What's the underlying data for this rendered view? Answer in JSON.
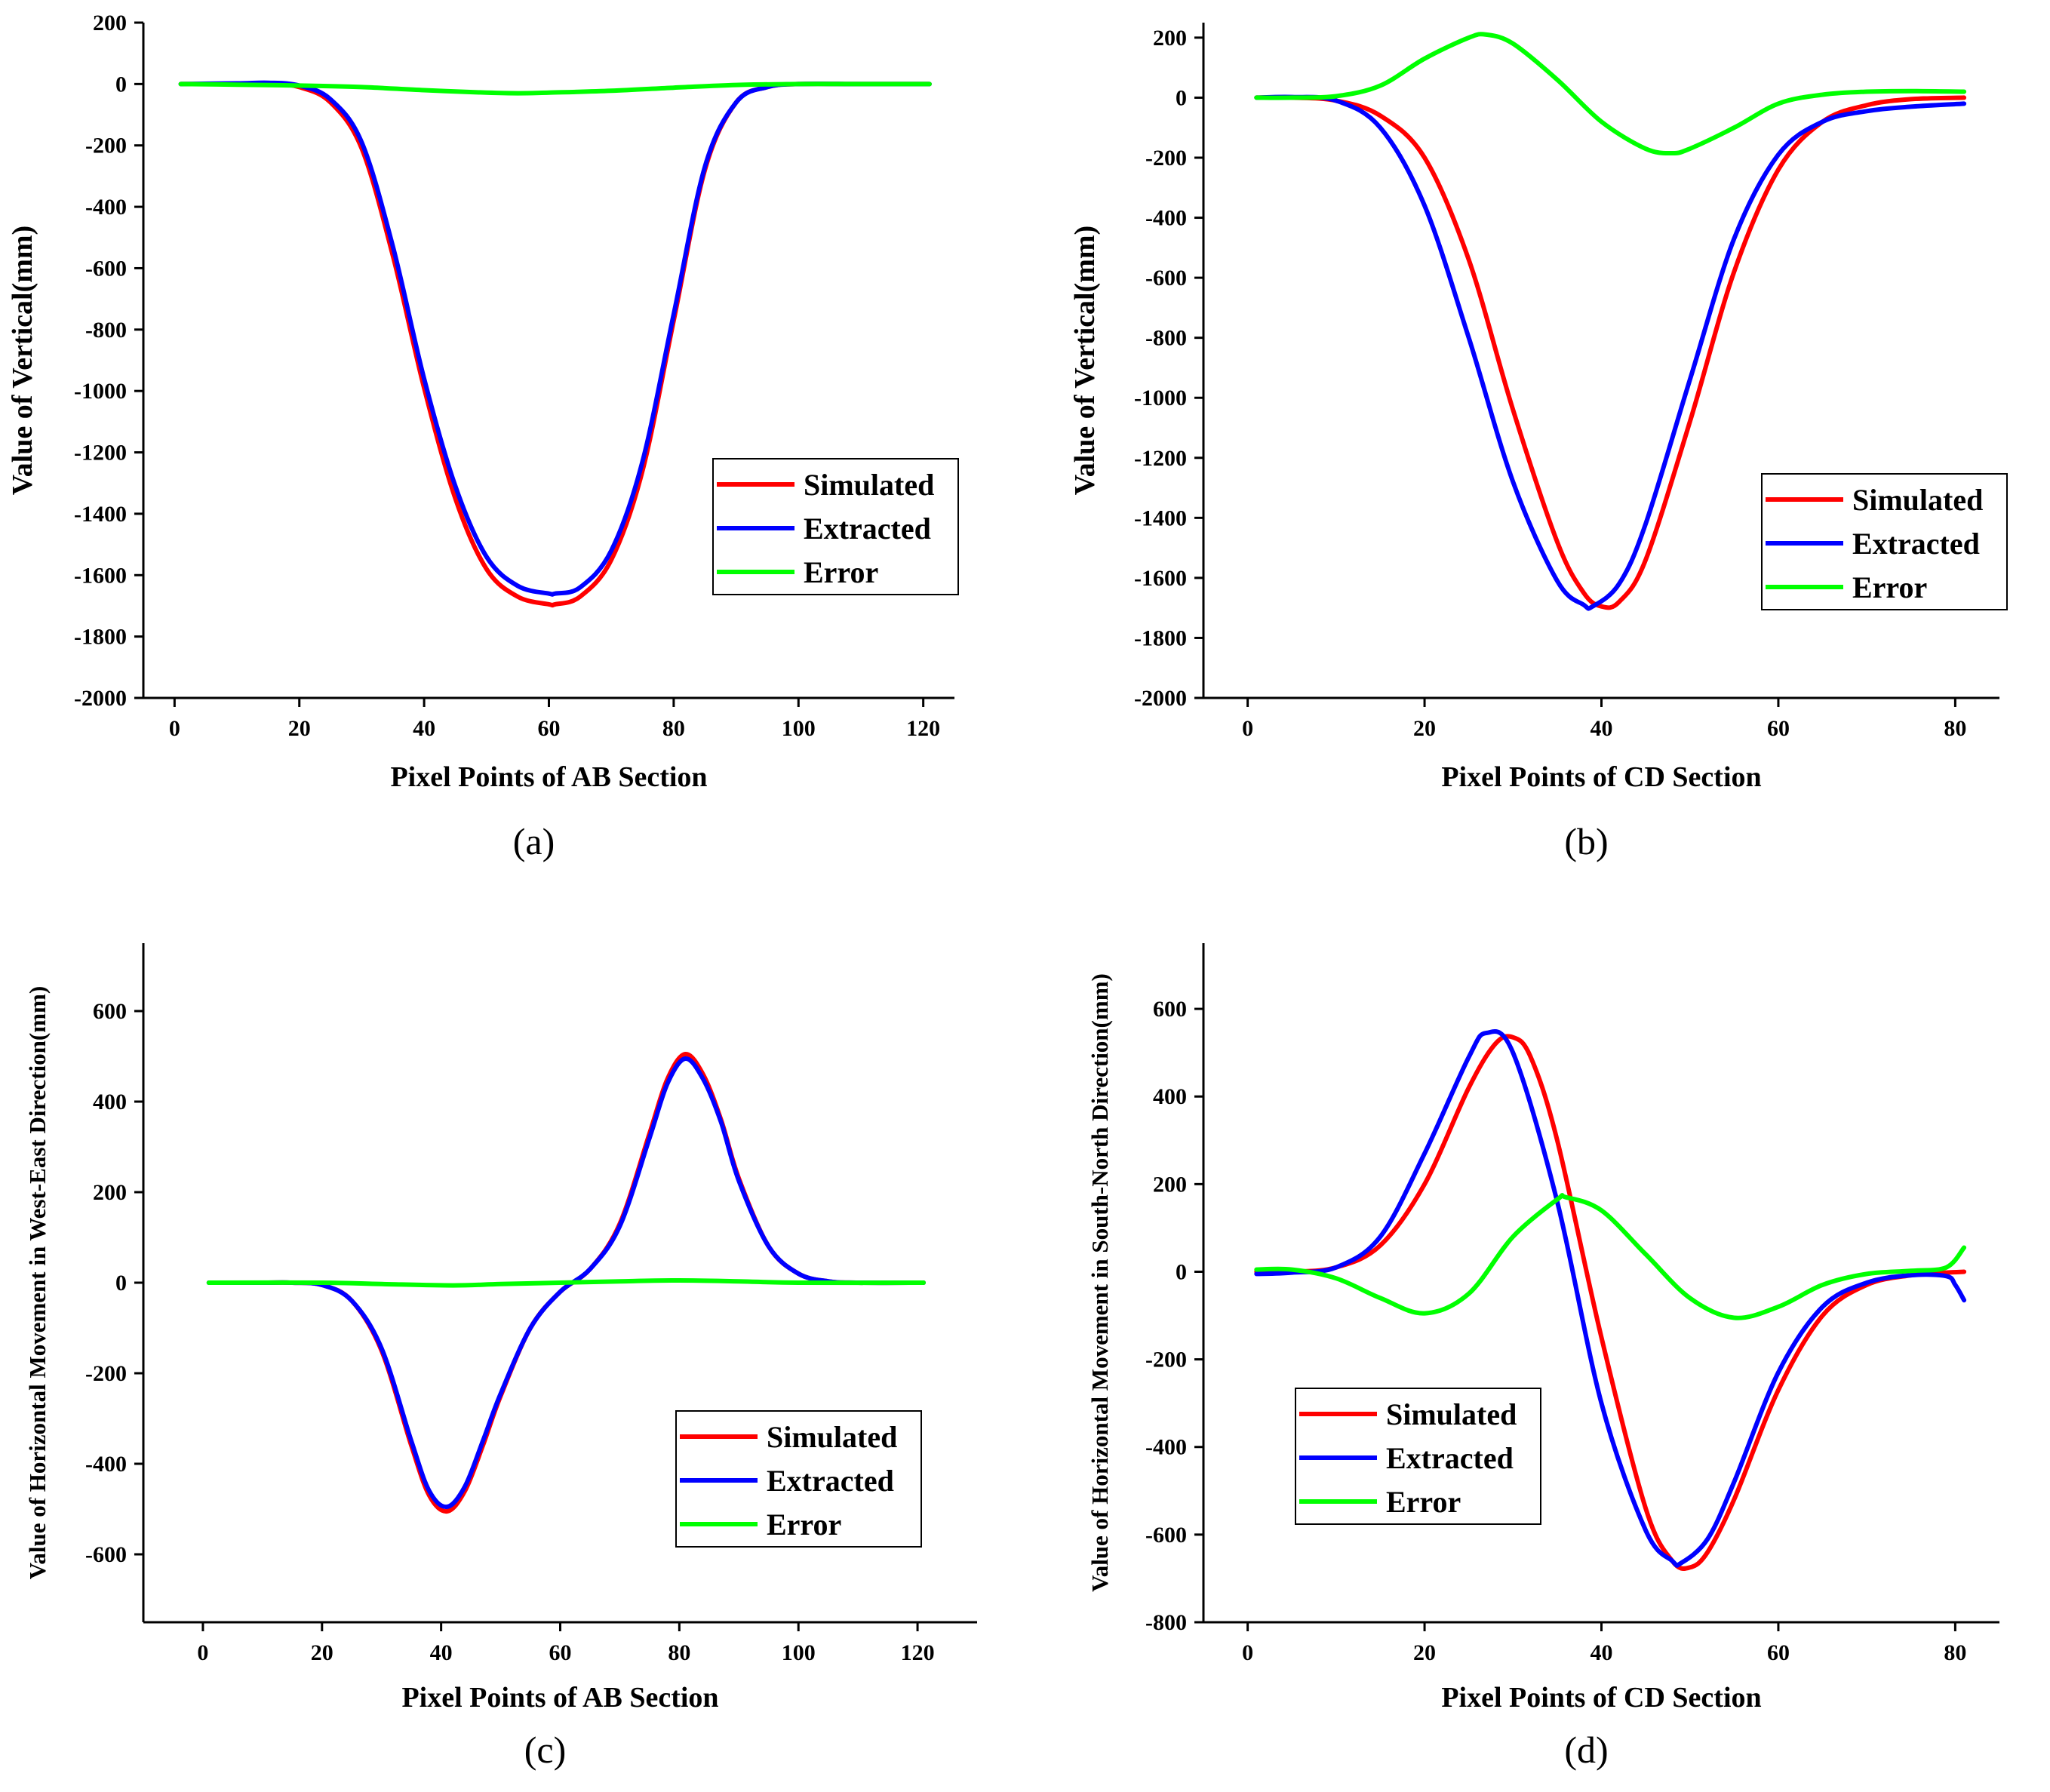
{
  "series_colors": {
    "Simulated": "#ff0000",
    "Extracted": "#0000ff",
    "Error": "#00ff00"
  },
  "chart_data": [
    {
      "panel": "(a)",
      "type": "line",
      "xlabel": "Pixel Points of AB Section",
      "ylabel": "Value of Vertical(mm)",
      "xlim": [
        -5,
        125
      ],
      "ylim": [
        -2000,
        200
      ],
      "xticks": [
        0,
        20,
        40,
        60,
        80,
        100,
        120
      ],
      "yticks": [
        -2000,
        -1800,
        -1600,
        -1400,
        -1200,
        -1000,
        -800,
        -600,
        -400,
        -200,
        0,
        200
      ],
      "legend": [
        "Simulated",
        "Extracted",
        "Error"
      ],
      "legend_position": "right",
      "series": [
        {
          "name": "Simulated",
          "x": [
            1,
            10,
            15,
            20,
            25,
            30,
            35,
            40,
            45,
            50,
            55,
            60,
            61,
            65,
            70,
            75,
            80,
            85,
            90,
            95,
            100,
            110,
            121
          ],
          "y": [
            0,
            0,
            2,
            -10,
            -60,
            -210,
            -560,
            -990,
            -1350,
            -1580,
            -1670,
            -1695,
            -1695,
            -1670,
            -1550,
            -1260,
            -770,
            -280,
            -60,
            -10,
            0,
            0,
            0
          ]
        },
        {
          "name": "Extracted",
          "x": [
            1,
            10,
            15,
            20,
            25,
            30,
            35,
            40,
            45,
            50,
            55,
            60,
            61,
            65,
            70,
            75,
            80,
            85,
            90,
            95,
            100,
            110,
            121
          ],
          "y": [
            0,
            2,
            4,
            -5,
            -50,
            -190,
            -530,
            -960,
            -1310,
            -1540,
            -1635,
            -1660,
            -1660,
            -1640,
            -1520,
            -1230,
            -750,
            -270,
            -60,
            -10,
            0,
            0,
            0
          ]
        },
        {
          "name": "Error",
          "x": [
            1,
            10,
            20,
            30,
            40,
            50,
            55,
            60,
            70,
            80,
            90,
            100,
            110,
            121
          ],
          "y": [
            0,
            -2,
            -5,
            -10,
            -20,
            -28,
            -30,
            -28,
            -22,
            -12,
            -3,
            0,
            0,
            0
          ]
        }
      ]
    },
    {
      "panel": "(b)",
      "type": "line",
      "xlabel": "Pixel Points of CD Section",
      "ylabel": "Value of Vertical(mm)",
      "xlim": [
        -5,
        85
      ],
      "ylim": [
        -2000,
        250
      ],
      "xticks": [
        0,
        20,
        40,
        60,
        80
      ],
      "yticks": [
        -2000,
        -1800,
        -1600,
        -1400,
        -1200,
        -1000,
        -800,
        -600,
        -400,
        -200,
        0,
        200
      ],
      "legend": [
        "Simulated",
        "Extracted",
        "Error"
      ],
      "legend_position": "right",
      "series": [
        {
          "name": "Simulated",
          "x": [
            1,
            5,
            10,
            15,
            20,
            25,
            30,
            35,
            38,
            40,
            42,
            45,
            50,
            55,
            60,
            65,
            70,
            75,
            81
          ],
          "y": [
            0,
            0,
            -10,
            -60,
            -200,
            -540,
            -1040,
            -1480,
            -1650,
            -1695,
            -1680,
            -1540,
            -1080,
            -580,
            -240,
            -80,
            -25,
            -5,
            0
          ]
        },
        {
          "name": "Extracted",
          "x": [
            1,
            5,
            10,
            15,
            20,
            25,
            30,
            35,
            38,
            39,
            42,
            45,
            50,
            55,
            60,
            65,
            70,
            75,
            81
          ],
          "y": [
            0,
            2,
            -10,
            -100,
            -360,
            -800,
            -1280,
            -1610,
            -1690,
            -1695,
            -1620,
            -1420,
            -940,
            -470,
            -190,
            -80,
            -45,
            -30,
            -20
          ]
        },
        {
          "name": "Error",
          "x": [
            1,
            5,
            10,
            15,
            20,
            25,
            27,
            30,
            35,
            40,
            45,
            48,
            50,
            55,
            60,
            65,
            70,
            75,
            81
          ],
          "y": [
            0,
            0,
            5,
            40,
            130,
            200,
            210,
            180,
            60,
            -80,
            -170,
            -185,
            -170,
            -100,
            -20,
            10,
            20,
            22,
            20
          ]
        }
      ]
    },
    {
      "panel": "(c)",
      "type": "line",
      "xlabel": "Pixel Points of AB Section",
      "ylabel": "Value of Horizontal Movement in West-East Direction(mm)",
      "xlim": [
        -10,
        130
      ],
      "ylim": [
        -750,
        750
      ],
      "xticks": [
        0,
        20,
        40,
        60,
        80,
        100,
        120
      ],
      "yticks": [
        -600,
        -400,
        -200,
        0,
        200,
        400,
        600
      ],
      "legend": [
        "Simulated",
        "Extracted",
        "Error"
      ],
      "legend_position": "right",
      "series": [
        {
          "name": "Simulated",
          "x": [
            1,
            10,
            15,
            20,
            25,
            30,
            35,
            38,
            41,
            44,
            47,
            50,
            55,
            60,
            65,
            70,
            75,
            78,
            81,
            84,
            87,
            90,
            95,
            100,
            105,
            110,
            121
          ],
          "y": [
            0,
            0,
            0,
            -5,
            -40,
            -150,
            -360,
            -470,
            -505,
            -460,
            -360,
            -250,
            -100,
            -20,
            30,
            130,
            330,
            450,
            505,
            460,
            360,
            230,
            80,
            20,
            3,
            0,
            0
          ]
        },
        {
          "name": "Extracted",
          "x": [
            1,
            10,
            15,
            20,
            25,
            30,
            35,
            38,
            41,
            44,
            47,
            50,
            55,
            60,
            65,
            70,
            75,
            78,
            81,
            84,
            87,
            90,
            95,
            100,
            105,
            110,
            121
          ],
          "y": [
            0,
            0,
            0,
            -5,
            -40,
            -145,
            -350,
            -460,
            -495,
            -450,
            -350,
            -245,
            -100,
            -20,
            30,
            125,
            320,
            440,
            495,
            450,
            355,
            225,
            80,
            20,
            3,
            0,
            0
          ]
        },
        {
          "name": "Error",
          "x": [
            1,
            20,
            30,
            42,
            50,
            60,
            70,
            80,
            90,
            100,
            121
          ],
          "y": [
            0,
            0,
            -3,
            -6,
            -3,
            0,
            3,
            5,
            3,
            0,
            0
          ]
        }
      ]
    },
    {
      "panel": "(d)",
      "type": "line",
      "xlabel": "Pixel Points of CD Section",
      "ylabel": "Value of Horizontal Movement in South-North Direction(mm)",
      "xlim": [
        -5,
        85
      ],
      "ylim": [
        -800,
        750
      ],
      "xticks": [
        0,
        20,
        40,
        60,
        80
      ],
      "yticks": [
        -800,
        -600,
        -400,
        -200,
        0,
        200,
        400,
        600
      ],
      "legend": [
        "Simulated",
        "Extracted",
        "Error"
      ],
      "legend_position": "left",
      "series": [
        {
          "name": "Simulated",
          "x": [
            1,
            5,
            10,
            15,
            20,
            25,
            28,
            30,
            32,
            35,
            40,
            45,
            48,
            50,
            52,
            55,
            60,
            65,
            70,
            75,
            79,
            81
          ],
          "y": [
            0,
            0,
            10,
            60,
            200,
            420,
            520,
            535,
            490,
            300,
            -150,
            -540,
            -660,
            -675,
            -640,
            -520,
            -270,
            -100,
            -30,
            -8,
            -2,
            0
          ]
        },
        {
          "name": "Extracted",
          "x": [
            1,
            5,
            10,
            15,
            20,
            25,
            27,
            30,
            35,
            40,
            45,
            48,
            49,
            52,
            55,
            60,
            65,
            70,
            75,
            79,
            80,
            81
          ],
          "y": [
            -5,
            -2,
            10,
            80,
            270,
            490,
            545,
            500,
            160,
            -300,
            -590,
            -660,
            -665,
            -610,
            -480,
            -230,
            -80,
            -25,
            -8,
            -10,
            -30,
            -65
          ]
        },
        {
          "name": "Error",
          "x": [
            1,
            5,
            10,
            15,
            20,
            25,
            30,
            35,
            36,
            40,
            45,
            50,
            55,
            60,
            65,
            70,
            75,
            79,
            81
          ],
          "y": [
            5,
            5,
            -15,
            -60,
            -95,
            -50,
            80,
            165,
            170,
            140,
            40,
            -60,
            -105,
            -80,
            -30,
            -5,
            2,
            10,
            55
          ]
        }
      ]
    }
  ]
}
